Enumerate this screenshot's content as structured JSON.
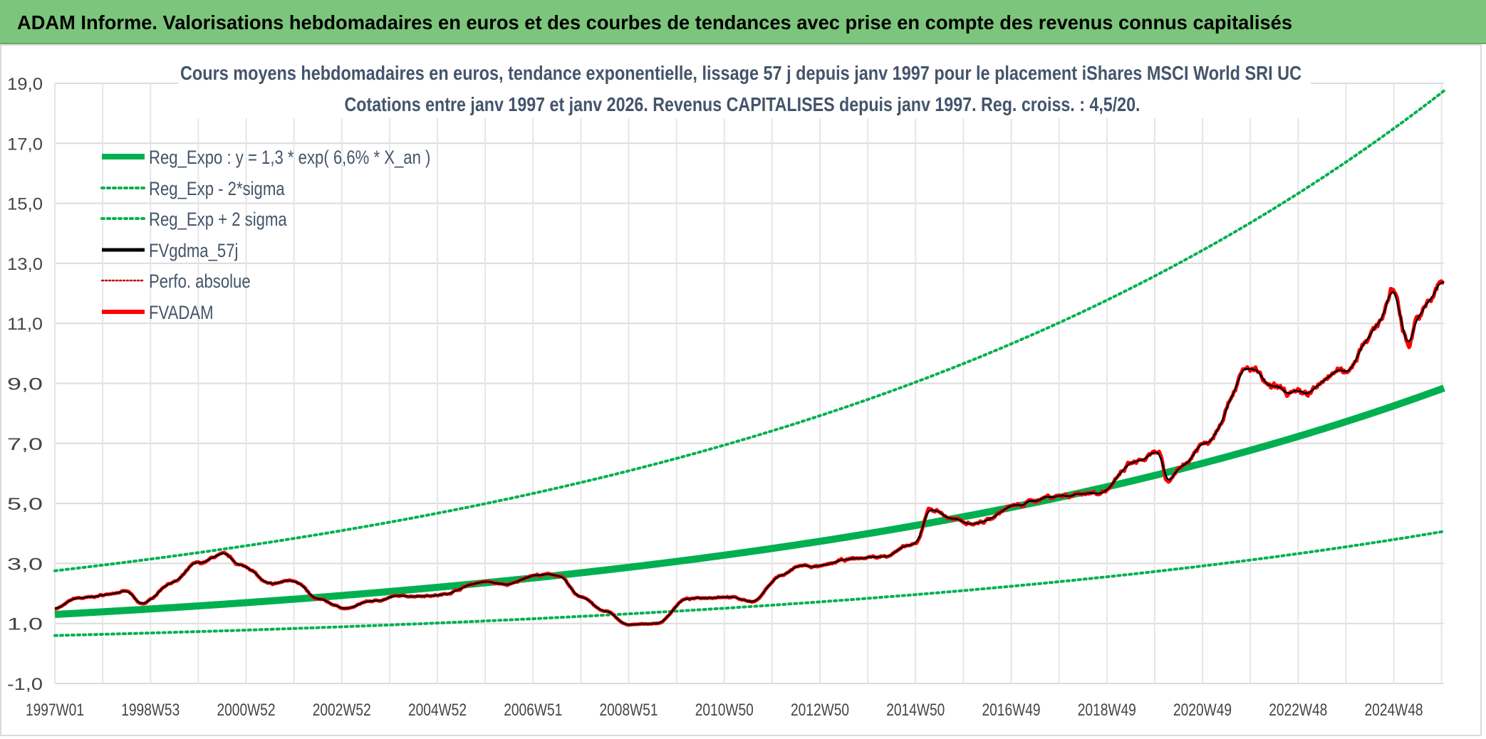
{
  "header": {
    "title": "ADAM Informe. Valorisations hebdomadaires en euros et des courbes de tendances avec prise en compte des revenus connus capitalisés"
  },
  "chart_data": {
    "type": "line",
    "title": "Cours moyens hebdomadaires en euros, tendance exponentielle, lissage 57 j depuis janv 1997 pour le placement iShares MSCI World SRI UC",
    "subtitle": "Cotations entre janv 1997 et janv 2026. Revenus CAPITALISES depuis janv 1997. Reg. croiss. : 4,5/20.",
    "xlabel": "",
    "ylabel": "",
    "ylim": [
      -1,
      19
    ],
    "yticks": [
      "-1,0",
      "1,0",
      "3,0",
      "5,0",
      "7,0",
      "9,0",
      "11,0",
      "13,0",
      "15,0",
      "17,0",
      "19,0"
    ],
    "xticks": [
      "1997W01",
      "1998W53",
      "2000W52",
      "2002W52",
      "2004W52",
      "2006W51",
      "2008W51",
      "2010W50",
      "2012W50",
      "2014W50",
      "2016W49",
      "2018W49",
      "2020W49",
      "2022W48",
      "2024W48"
    ],
    "xrange_years": [
      1997.0,
      2026.05
    ],
    "grid": true,
    "legend_placement": "top-left",
    "series": [
      {
        "name": "Reg_Expo : y = 1,3 * exp( 6,6% *  X_an )",
        "color": "#00b050",
        "style": "solid-thick",
        "a": 1.3,
        "rate": 0.066
      },
      {
        "name": "Reg_Exp - 2*sigma",
        "color": "#00b050",
        "style": "dotted",
        "factor": 0.46
      },
      {
        "name": "Reg_Exp + 2 sigma",
        "color": "#00b050",
        "style": "dotted",
        "factor": 2.12
      },
      {
        "name": "FVgdma_57j",
        "color": "#000000",
        "style": "solid"
      },
      {
        "name": "Perfo. absolue",
        "color": "#c00000",
        "style": "dotted"
      },
      {
        "name": "FVADAM",
        "color": "#ff0000",
        "style": "solid-thick",
        "points": [
          [
            1997.0,
            1.5
          ],
          [
            1997.5,
            1.85
          ],
          [
            1998.5,
            2.05
          ],
          [
            1998.8,
            1.65
          ],
          [
            1999.5,
            2.4
          ],
          [
            2000.0,
            3.0
          ],
          [
            2000.5,
            3.3
          ],
          [
            2001.0,
            2.9
          ],
          [
            2001.5,
            2.3
          ],
          [
            2002.0,
            2.45
          ],
          [
            2002.5,
            1.8
          ],
          [
            2003.1,
            1.5
          ],
          [
            2003.6,
            1.75
          ],
          [
            2004.2,
            1.9
          ],
          [
            2005.0,
            1.95
          ],
          [
            2006.0,
            2.4
          ],
          [
            2006.5,
            2.3
          ],
          [
            2007.0,
            2.6
          ],
          [
            2007.5,
            2.6
          ],
          [
            2008.0,
            1.9
          ],
          [
            2008.5,
            1.4
          ],
          [
            2009.0,
            0.95
          ],
          [
            2009.6,
            1.0
          ],
          [
            2010.2,
            1.8
          ],
          [
            2011.0,
            1.9
          ],
          [
            2011.6,
            1.75
          ],
          [
            2012.2,
            2.6
          ],
          [
            2012.6,
            2.9
          ],
          [
            2013.0,
            2.85
          ],
          [
            2013.5,
            3.1
          ],
          [
            2014.2,
            3.2
          ],
          [
            2015.0,
            3.6
          ],
          [
            2015.3,
            4.8
          ],
          [
            2015.9,
            4.4
          ],
          [
            2016.3,
            4.4
          ],
          [
            2017.0,
            4.9
          ],
          [
            2018.0,
            5.3
          ],
          [
            2018.9,
            5.4
          ],
          [
            2019.6,
            6.3
          ],
          [
            2020.1,
            6.6
          ],
          [
            2020.25,
            5.6
          ],
          [
            2020.6,
            6.3
          ],
          [
            2021.0,
            7.0
          ],
          [
            2022.0,
            9.5
          ],
          [
            2022.5,
            8.8
          ],
          [
            2023.0,
            8.7
          ],
          [
            2024.0,
            9.5
          ],
          [
            2024.5,
            10.6
          ],
          [
            2025.0,
            12.0
          ],
          [
            2025.3,
            10.3
          ],
          [
            2025.5,
            11.3
          ],
          [
            2026.05,
            12.4
          ]
        ]
      }
    ]
  }
}
